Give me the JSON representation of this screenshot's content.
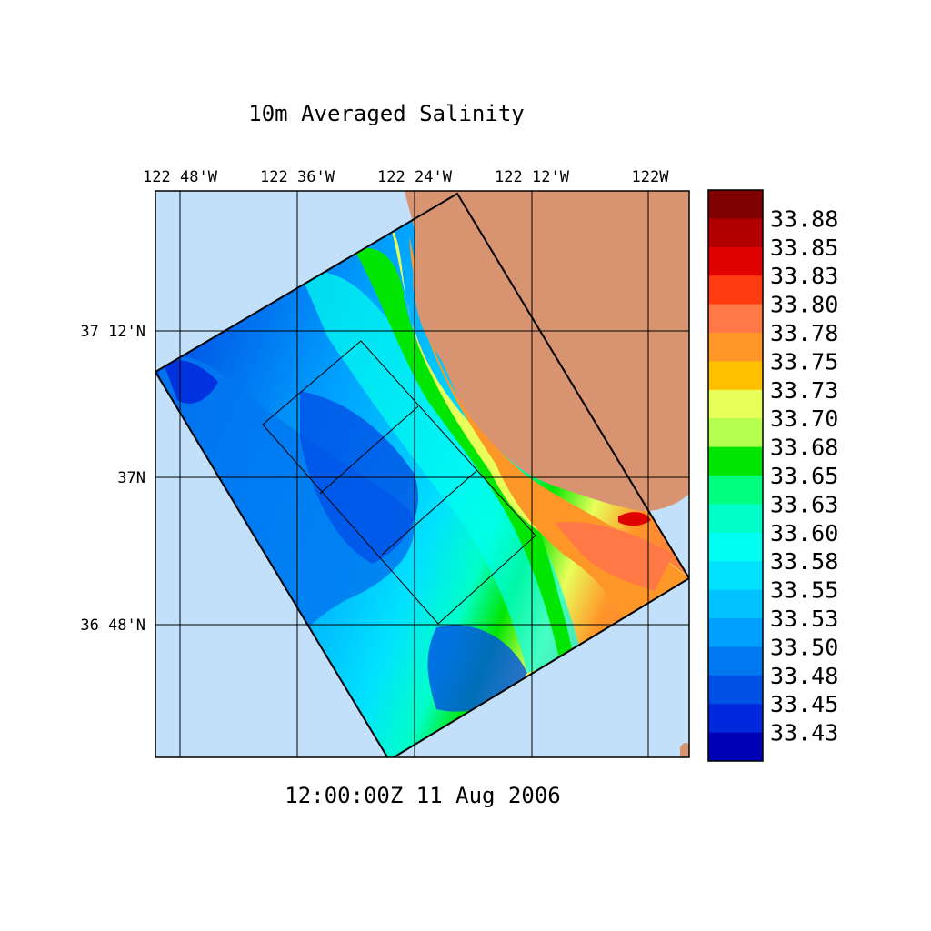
{
  "title": "10m Averaged Salinity",
  "timestamp": "12:00:00Z  11 Aug 2006",
  "lon_labels": [
    "122 48'W",
    "122 36'W",
    "122 24'W",
    "122 12'W",
    "122W"
  ],
  "lat_labels": [
    "37 12'N",
    "37N",
    "36 48'N"
  ],
  "colorbar": {
    "labels": [
      "33.88",
      "33.85",
      "33.83",
      "33.80",
      "33.78",
      "33.75",
      "33.73",
      "33.70",
      "33.68",
      "33.65",
      "33.63",
      "33.60",
      "33.58",
      "33.55",
      "33.53",
      "33.50",
      "33.48",
      "33.45",
      "33.43"
    ],
    "colors": [
      "#7f0000",
      "#b20000",
      "#e00000",
      "#ff3c0f",
      "#ff7846",
      "#ff9628",
      "#ffc000",
      "#e8ff5a",
      "#b4ff50",
      "#00e600",
      "#00ff7f",
      "#00ffc8",
      "#00fff0",
      "#00e2ff",
      "#00c3ff",
      "#00a0ff",
      "#0078f0",
      "#0050e6",
      "#0028dc",
      "#0000b4"
    ]
  },
  "colors": {
    "ocean_background": "#c2e0fa",
    "land": "#d89470"
  }
}
